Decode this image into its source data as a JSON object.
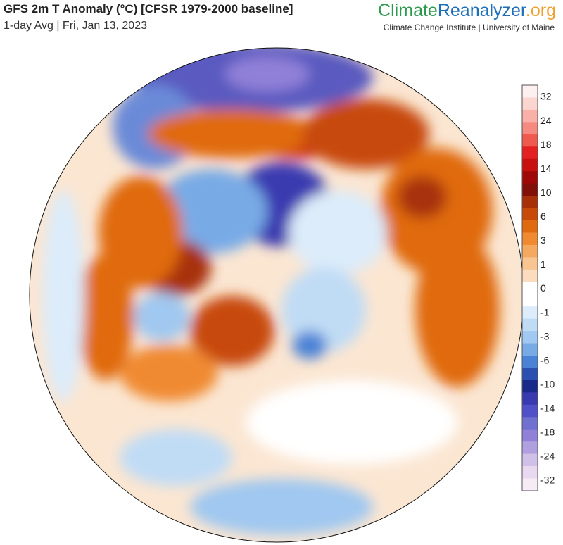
{
  "header": {
    "title": "GFS 2m T Anomaly (°C) [CFSR 1979-2000 baseline]",
    "subtitle": "1-day Avg | Fri, Jan 13, 2023",
    "brand": [
      "Climate",
      "Reanalyzer",
      ".org"
    ],
    "institute": "Climate Change Institute | University of Maine"
  },
  "colorbar": {
    "labels": [
      32,
      24,
      18,
      14,
      10,
      6,
      3,
      1,
      0,
      -1,
      -3,
      -6,
      -10,
      -14,
      -18,
      -24,
      -32
    ],
    "colors": [
      "#fdf0f0",
      "#fbd5d0",
      "#f8b0a8",
      "#f48a80",
      "#ee5a50",
      "#e42020",
      "#c81010",
      "#a00808",
      "#801008",
      "#a83008",
      "#c84a08",
      "#e06a10",
      "#f08a30",
      "#f5a860",
      "#f8c490",
      "#fbdcbe",
      "#ffffff",
      "#ffffff",
      "#dcecfa",
      "#c0dcf5",
      "#a0c8f0",
      "#78aae6",
      "#4a82d6",
      "#2a50b0",
      "#1a2a8a",
      "#3a3ab0",
      "#5050c8",
      "#7070d0",
      "#9080d8",
      "#b0a0e0",
      "#d0c0e8",
      "#e8d8f0",
      "#f5ecf5"
    ]
  }
}
